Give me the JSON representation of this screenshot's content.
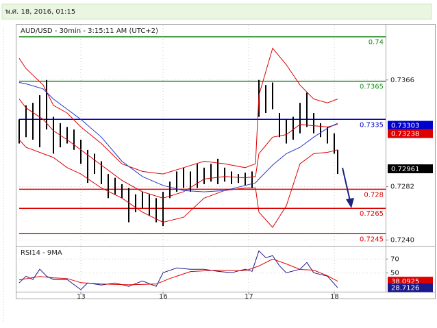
{
  "header": "พ.ศ. 18, 2016, 01:15",
  "chart_data": [
    {
      "type": "range",
      "title": "AUD/USD - 30min - 3:15:11 AM (UTC+2)",
      "x": [
        0,
        2,
        4,
        6,
        8,
        10,
        12,
        14,
        16,
        18,
        20,
        22,
        24,
        26,
        28,
        30,
        32,
        34,
        36,
        38,
        40,
        42,
        44,
        46,
        48,
        50,
        52,
        54,
        56,
        58,
        60,
        62,
        64,
        66,
        68,
        70,
        72,
        74,
        76,
        78,
        80,
        82,
        84,
        86,
        88,
        90,
        92,
        93
      ],
      "high": [
        0.7335,
        0.7346,
        0.7348,
        0.7354,
        0.7366,
        0.7337,
        0.7332,
        0.7329,
        0.7327,
        0.7319,
        0.7311,
        0.7308,
        0.7302,
        0.7292,
        0.7289,
        0.7284,
        0.7281,
        0.7276,
        0.7278,
        0.7276,
        0.7273,
        0.7278,
        0.7286,
        0.7294,
        0.7297,
        0.7294,
        0.73,
        0.7297,
        0.73,
        0.7304,
        0.7297,
        0.7294,
        0.7292,
        0.7293,
        0.7294,
        0.7366,
        0.7362,
        0.7364,
        0.734,
        0.7335,
        0.7337,
        0.7348,
        0.7356,
        0.734,
        0.7332,
        0.7329,
        0.7324,
        0.7311
      ],
      "low": [
        0.7316,
        0.7321,
        0.7319,
        0.7313,
        0.7327,
        0.7308,
        0.7313,
        0.7316,
        0.7311,
        0.73,
        0.7285,
        0.7292,
        0.7284,
        0.7273,
        0.7276,
        0.7273,
        0.7254,
        0.7262,
        0.7265,
        0.7259,
        0.7254,
        0.7251,
        0.7273,
        0.7278,
        0.7281,
        0.7278,
        0.7281,
        0.7284,
        0.7286,
        0.7284,
        0.7286,
        0.7284,
        0.7285,
        0.7283,
        0.7281,
        0.7337,
        0.734,
        0.7343,
        0.7321,
        0.7316,
        0.7319,
        0.7324,
        0.7329,
        0.7324,
        0.7321,
        0.7316,
        0.7308,
        0.7292
      ],
      "color": "#000000",
      "series": [
        {
          "color": "#dd0000",
          "x": [
            0,
            2,
            7,
            10,
            14,
            18,
            24,
            30,
            36,
            42,
            48,
            54,
            60,
            66,
            69,
            70,
            74,
            78,
            82,
            86,
            90,
            93
          ],
          "values": [
            0.7383,
            0.7375,
            0.7362,
            0.7346,
            0.734,
            0.7329,
            0.7316,
            0.73,
            0.7294,
            0.7292,
            0.7297,
            0.7302,
            0.73,
            0.7297,
            0.73,
            0.7354,
            0.7391,
            0.7378,
            0.7362,
            0.7351,
            0.7348,
            0.7351
          ]
        },
        {
          "color": "#dd0000",
          "x": [
            0,
            2,
            7,
            10,
            14,
            18,
            24,
            30,
            36,
            42,
            48,
            54,
            60,
            66,
            69,
            70,
            74,
            78,
            82,
            86,
            90,
            93
          ],
          "values": [
            0.7351,
            0.7344,
            0.7335,
            0.7326,
            0.7319,
            0.7311,
            0.7299,
            0.7287,
            0.7278,
            0.7273,
            0.7278,
            0.7288,
            0.729,
            0.7289,
            0.729,
            0.7308,
            0.7321,
            0.7323,
            0.7331,
            0.733,
            0.7329,
            0.7331
          ]
        },
        {
          "color": "#dd0000",
          "x": [
            0,
            2,
            7,
            10,
            14,
            18,
            24,
            30,
            36,
            42,
            48,
            54,
            60,
            66,
            69,
            70,
            74,
            78,
            82,
            86,
            90,
            93
          ],
          "values": [
            0.7319,
            0.7313,
            0.7308,
            0.7305,
            0.7297,
            0.7292,
            0.7281,
            0.7273,
            0.7262,
            0.7254,
            0.7258,
            0.7273,
            0.7279,
            0.7281,
            0.7281,
            0.7262,
            0.725,
            0.7267,
            0.73,
            0.7308,
            0.7309,
            0.7311
          ]
        },
        {
          "color": "#2233cc",
          "x": [
            0,
            2,
            7,
            10,
            14,
            18,
            24,
            30,
            36,
            42,
            48,
            54,
            60,
            66,
            69,
            70,
            74,
            78,
            82,
            86,
            90,
            93
          ],
          "values": [
            0.7364,
            0.7363,
            0.7359,
            0.7351,
            0.7343,
            0.7335,
            0.7321,
            0.7302,
            0.729,
            0.7283,
            0.7279,
            0.7278,
            0.7279,
            0.7283,
            0.7285,
            0.7288,
            0.7299,
            0.7308,
            0.7313,
            0.7321,
            0.7328,
            0.7332
          ]
        }
      ],
      "levels": {
        "values": [
          0.74,
          0.7365,
          0.7335,
          0.728,
          0.7265,
          0.7245
        ],
        "colors": [
          "#1a8c1a",
          "#1a8c1a",
          "#0000cc",
          "#dd0000",
          "#dd0000",
          "#dd0000"
        ]
      },
      "markers": {
        "values": [
          0.73303,
          0.73238,
          0.72961
        ],
        "colors": [
          "#0000cc",
          "#dd0000",
          "#000000"
        ]
      },
      "xlim": [
        0,
        107
      ],
      "ylim": [
        0.7236,
        0.7409
      ],
      "yticks": [
        0.7366,
        0.7282,
        {
          "value": 0.724,
          "label": "0.7240"
        }
      ]
    },
    {
      "type": "line",
      "title": "RSI14 - 9MA",
      "series": [
        {
          "color": "#1a1a8c",
          "x": [
            0,
            2,
            4,
            6,
            8,
            10,
            14,
            18,
            20,
            24,
            28,
            32,
            36,
            40,
            42,
            46,
            50,
            54,
            58,
            62,
            66,
            68,
            70,
            72,
            74,
            76,
            78,
            82,
            84,
            86,
            90,
            93
          ],
          "values": [
            35.6,
            45.4,
            40.5,
            55.3,
            45.4,
            40.5,
            40.5,
            26,
            35.6,
            32.6,
            35.6,
            30.7,
            38.5,
            30.7,
            50.3,
            57.2,
            55.3,
            55.3,
            52.3,
            50.3,
            55.3,
            52.3,
            81.8,
            72,
            74.9,
            60.2,
            50.3,
            55.3,
            65.1,
            50.3,
            45.4,
            28.7
          ]
        },
        {
          "color": "#dd0000",
          "x": [
            0,
            6,
            10,
            14,
            18,
            24,
            32,
            40,
            44,
            50,
            58,
            66,
            70,
            74,
            78,
            82,
            86,
            90,
            93
          ],
          "values": [
            40,
            45,
            43,
            42,
            36,
            34,
            33,
            34,
            42,
            52,
            54,
            53,
            60,
            70,
            63,
            55,
            54,
            46,
            38.1
          ]
        }
      ],
      "markers": {
        "values": [
          38.0925,
          28.7126
        ],
        "colors": [
          "#dd0000",
          "#1a1a8c"
        ]
      },
      "xlim": [
        0,
        107
      ],
      "xticks": [
        {
          "value": 18,
          "label": "13"
        },
        {
          "value": 42,
          "label": "16"
        },
        {
          "value": 67,
          "label": "17"
        },
        {
          "value": 92,
          "label": "18"
        }
      ],
      "ylim": [
        24,
        88
      ],
      "yticks": [
        70,
        50
      ]
    }
  ]
}
